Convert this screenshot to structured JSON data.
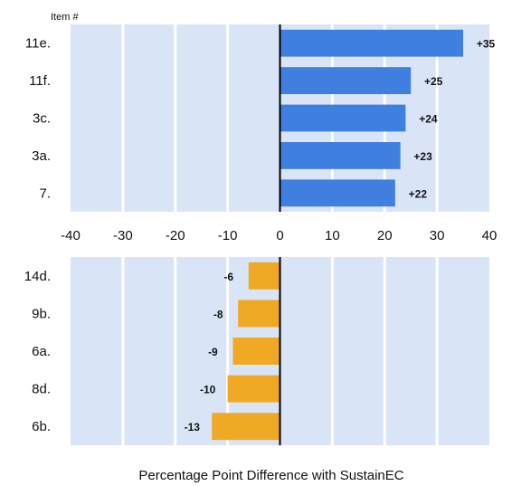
{
  "chart_data": {
    "type": "bar",
    "orientation": "horizontal",
    "category_header": "Item #",
    "xlabel": "Percentage Point Difference with SustainEC",
    "xlim": [
      -40,
      40
    ],
    "x_ticks": [
      "-40",
      "-30",
      "-20",
      "-10",
      "0",
      "10",
      "20",
      "30",
      "40"
    ],
    "colors": {
      "positive": "#3f7fdf",
      "negative": "#f0a924",
      "panel_bg": "#d9e5f7",
      "grid": "#ffffff",
      "zero_line": "#000000"
    },
    "panels": [
      {
        "name": "positive",
        "categories": [
          "11e.",
          "11f.",
          "3c.",
          "3a.",
          "7."
        ],
        "values": [
          35,
          25,
          24,
          23,
          22
        ],
        "labels": [
          "+35",
          "+25",
          "+24",
          "+23",
          "+22"
        ]
      },
      {
        "name": "negative",
        "categories": [
          "14d.",
          "9b.",
          "6a.",
          "8d.",
          "6b."
        ],
        "values": [
          -6,
          -8,
          -9,
          -10,
          -13
        ],
        "labels": [
          "-6",
          "-8",
          "-9",
          "-10",
          "-13"
        ]
      }
    ]
  }
}
